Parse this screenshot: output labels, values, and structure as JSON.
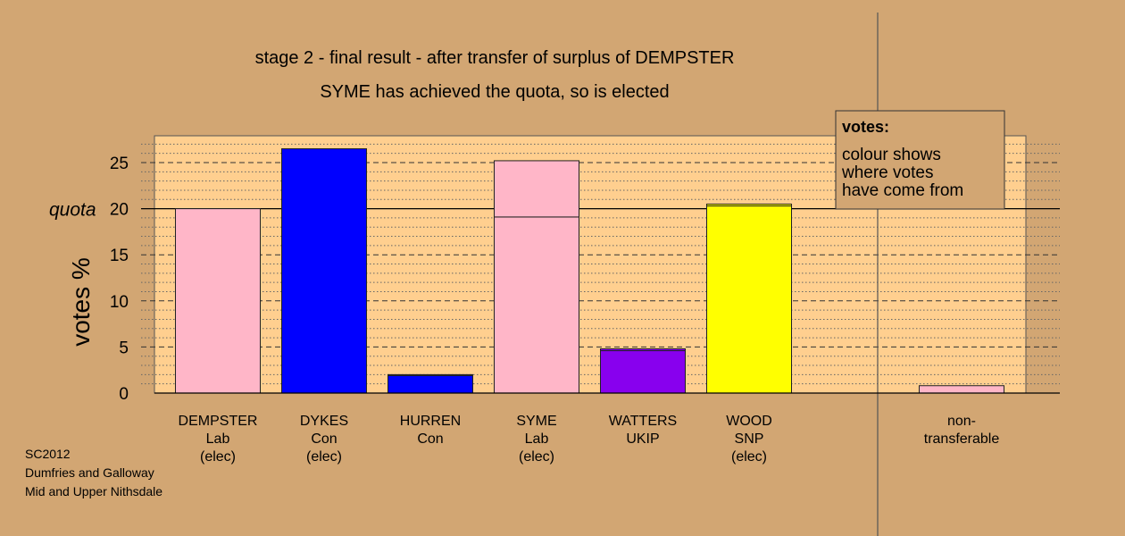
{
  "chart_data": {
    "type": "bar",
    "title": "stage 2 - final result - after transfer of surplus of DEMPSTER",
    "subtitle": "SYME has achieved the quota, so is elected",
    "ylabel": "votes %",
    "ylim": [
      0,
      27.5
    ],
    "yticks": [
      0,
      5,
      10,
      15,
      20,
      25
    ],
    "quota": 20,
    "quota_label": "quota",
    "grid": true,
    "categories": [
      {
        "lines": [
          "DEMPSTER",
          "Lab",
          "(elec)"
        ],
        "color": "#ffb6c8",
        "segments": [
          20.0
        ]
      },
      {
        "lines": [
          "DYKES",
          "Con",
          "(elec)"
        ],
        "color": "#0000ff",
        "segments": [
          26.5
        ]
      },
      {
        "lines": [
          "HURREN",
          "Con"
        ],
        "color": "#0000ff",
        "segments": [
          1.9,
          0.1
        ]
      },
      {
        "lines": [
          "SYME",
          "Lab",
          "(elec)"
        ],
        "color": "#ffb6c8",
        "segments": [
          19.1,
          6.1
        ]
      },
      {
        "lines": [
          "WATTERS",
          "UKIP"
        ],
        "color": "#8800ee",
        "segments": [
          4.6,
          0.2
        ]
      },
      {
        "lines": [
          "WOOD",
          "SNP",
          "(elec)"
        ],
        "color": "#ffff00",
        "segments": [
          20.3,
          0.2
        ]
      },
      {
        "lines": [
          "non-",
          "transferable"
        ],
        "color": "#ffb6c8",
        "segments": [
          0.8
        ]
      }
    ],
    "legend": {
      "position": "top-right",
      "heading": "votes:",
      "lines": [
        "colour shows",
        "where votes",
        "have come from"
      ]
    }
  },
  "source": [
    "SC2012",
    "Dumfries and Galloway",
    "Mid and Upper Nithsdale"
  ]
}
